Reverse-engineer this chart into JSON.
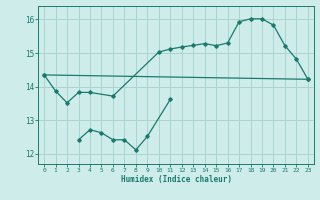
{
  "bg_color": "#ceecea",
  "grid_color": "#aad4d0",
  "line_color": "#1a7a6e",
  "xlabel": "Humidex (Indice chaleur)",
  "ylim": [
    11.7,
    16.4
  ],
  "xlim": [
    -0.5,
    23.5
  ],
  "yticks": [
    12,
    13,
    14,
    15,
    16
  ],
  "xticks": [
    0,
    1,
    2,
    3,
    4,
    5,
    6,
    7,
    8,
    9,
    10,
    11,
    12,
    13,
    14,
    15,
    16,
    17,
    18,
    19,
    20,
    21,
    22,
    23
  ],
  "series": [
    {
      "x": [
        0,
        1,
        2,
        3,
        4,
        6,
        10,
        11,
        12,
        13,
        14,
        15,
        16,
        17,
        18,
        19,
        20,
        21,
        22,
        23
      ],
      "y": [
        14.35,
        13.87,
        13.52,
        13.83,
        13.83,
        13.72,
        15.03,
        15.12,
        15.18,
        15.23,
        15.28,
        15.22,
        15.3,
        15.93,
        16.02,
        16.02,
        15.83,
        15.22,
        14.82,
        14.22
      ]
    },
    {
      "x": [
        0,
        23
      ],
      "y": [
        14.35,
        14.22
      ]
    },
    {
      "x": [
        3,
        4,
        5,
        6,
        7,
        8,
        9,
        11
      ],
      "y": [
        12.42,
        12.72,
        12.63,
        12.42,
        12.42,
        12.12,
        12.52,
        13.62
      ]
    }
  ]
}
